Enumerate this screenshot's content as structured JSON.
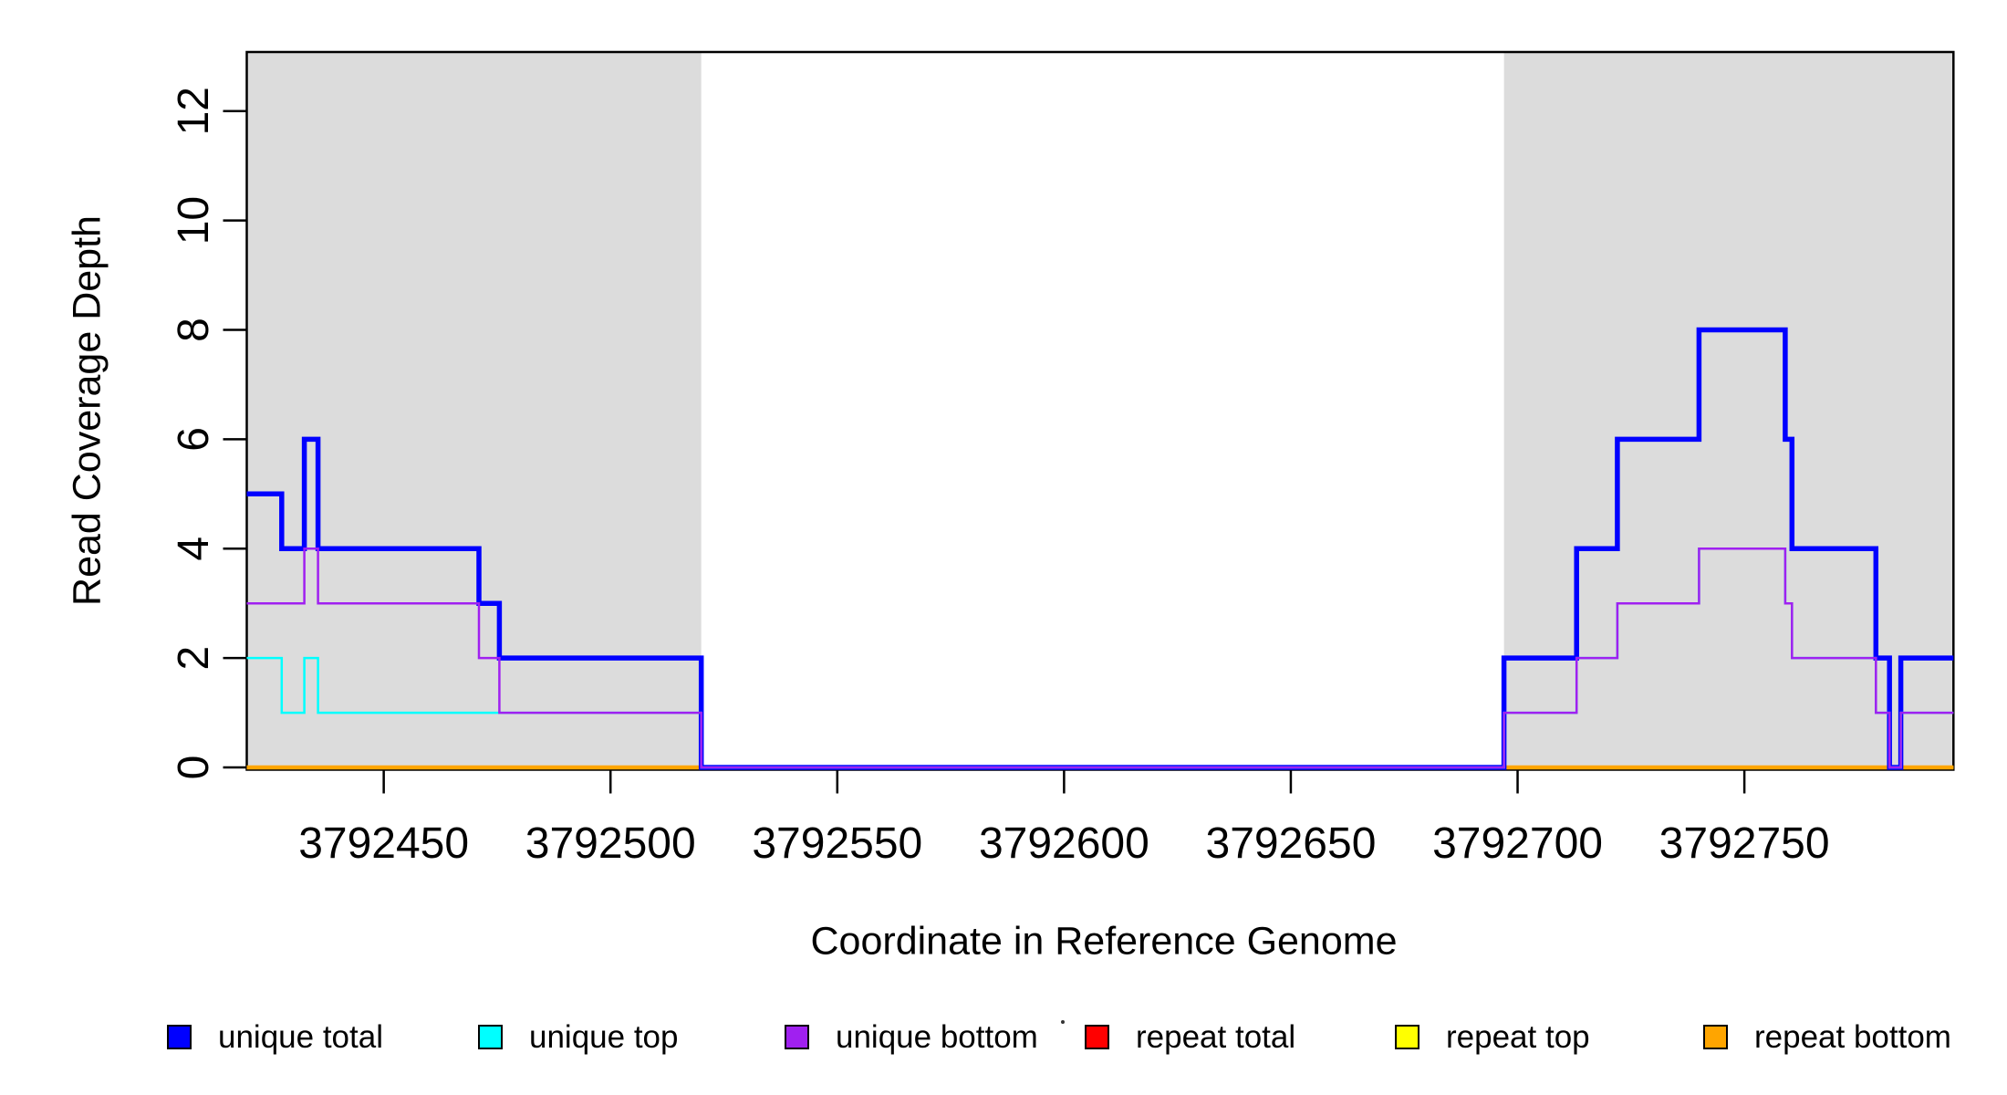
{
  "figure": {
    "background_color": "#ffffff",
    "plot_background_color": "#ffffff",
    "box_color": "#000000",
    "text_color": "#000000"
  },
  "chart_data": {
    "type": "line",
    "step": true,
    "title": "",
    "xlabel": "Coordinate in Reference Genome",
    "ylabel": "Read Coverage Depth",
    "xlim": [
      3792419.8,
      3792796.1
    ],
    "ylim": [
      0,
      13.08
    ],
    "x_ticks": [
      3792450,
      3792500,
      3792550,
      3792600,
      3792650,
      3792700,
      3792750
    ],
    "y_ticks": [
      0,
      2,
      4,
      6,
      8,
      10,
      12
    ],
    "grid": false,
    "shaded_regions": [
      {
        "name": "repeat-masked-region-left",
        "x0": 3792419.8,
        "x1": 3792520,
        "color": "#DCDCDC"
      },
      {
        "name": "repeat-masked-region-right",
        "x0": 3792697,
        "x1": 3792796.1,
        "color": "#DCDCDC"
      }
    ],
    "series": [
      {
        "name": "repeat total",
        "color": "#FF0000",
        "line_width": 3,
        "segments": [
          [
            3792419.8,
            3792796.1,
            0
          ]
        ]
      },
      {
        "name": "repeat top",
        "color": "#FFFF00",
        "line_width": 3,
        "segments": [
          [
            3792419.8,
            3792796.1,
            0
          ]
        ]
      },
      {
        "name": "repeat bottom",
        "color": "#FFA500",
        "line_width": 4.5,
        "segments": [
          [
            3792419.8,
            3792796.1,
            0
          ]
        ]
      },
      {
        "name": "unique total",
        "color": "#0000FF",
        "line_width": 5.5,
        "segments": [
          [
            3792419.8,
            3792427.5,
            5
          ],
          [
            3792427.5,
            3792432.5,
            4
          ],
          [
            3792432.5,
            3792435.5,
            6
          ],
          [
            3792435.5,
            3792471,
            4
          ],
          [
            3792471,
            3792475.5,
            3
          ],
          [
            3792475.5,
            3792520,
            2
          ],
          [
            3792520,
            3792697,
            0
          ],
          [
            3792697,
            3792713,
            2
          ],
          [
            3792713,
            3792722,
            4
          ],
          [
            3792722,
            3792740,
            6
          ],
          [
            3792740,
            3792759,
            8
          ],
          [
            3792759,
            3792760.5,
            6
          ],
          [
            3792760.5,
            3792779,
            4
          ],
          [
            3792779,
            3792782,
            2
          ],
          [
            3792782,
            3792784.5,
            0
          ],
          [
            3792784.5,
            3792796.1,
            2
          ]
        ]
      },
      {
        "name": "unique top",
        "color": "#00FFFF",
        "line_width": 2.5,
        "segments": [
          [
            3792419.8,
            3792427.5,
            2
          ],
          [
            3792427.5,
            3792432.5,
            1
          ],
          [
            3792432.5,
            3792435.5,
            2
          ],
          [
            3792435.5,
            3792520,
            1
          ],
          [
            3792520,
            3792697,
            0
          ],
          [
            3792697,
            3792713,
            1
          ],
          [
            3792713,
            3792722,
            2
          ],
          [
            3792722,
            3792740,
            3
          ],
          [
            3792740,
            3792759,
            4
          ],
          [
            3792759,
            3792760.5,
            3
          ],
          [
            3792760.5,
            3792779,
            2
          ],
          [
            3792779,
            3792782,
            1
          ],
          [
            3792782,
            3792784.5,
            0
          ],
          [
            3792784.5,
            3792796.1,
            1
          ]
        ]
      },
      {
        "name": "unique bottom",
        "color": "#A020F0",
        "line_width": 2.5,
        "segments": [
          [
            3792419.8,
            3792432.5,
            3
          ],
          [
            3792432.5,
            3792435.5,
            4
          ],
          [
            3792435.5,
            3792471,
            3
          ],
          [
            3792471,
            3792475.5,
            2
          ],
          [
            3792475.5,
            3792520,
            1
          ],
          [
            3792520,
            3792697,
            0
          ],
          [
            3792697,
            3792713,
            1
          ],
          [
            3792713,
            3792722,
            2
          ],
          [
            3792722,
            3792740,
            3
          ],
          [
            3792740,
            3792759,
            4
          ],
          [
            3792759,
            3792760.5,
            3
          ],
          [
            3792760.5,
            3792779,
            2
          ],
          [
            3792779,
            3792782,
            1
          ],
          [
            3792782,
            3792784.5,
            0
          ],
          [
            3792784.5,
            3792796.1,
            1
          ]
        ]
      }
    ],
    "legend": {
      "position": "bottom",
      "entries": [
        {
          "label": "unique total",
          "color": "#0000FF"
        },
        {
          "label": "unique top",
          "color": "#00FFFF"
        },
        {
          "label": "unique bottom",
          "color": "#A020F0"
        },
        {
          "label": "repeat total",
          "color": "#FF0000"
        },
        {
          "label": "repeat top",
          "color": "#FFFF00"
        },
        {
          "label": "repeat bottom",
          "color": "#FFA500"
        }
      ]
    }
  },
  "annotations": [
    {
      "name": "stray-dot-artifact",
      "description": "tiny dark speck between unique bottom and repeat total legend entries"
    }
  ]
}
